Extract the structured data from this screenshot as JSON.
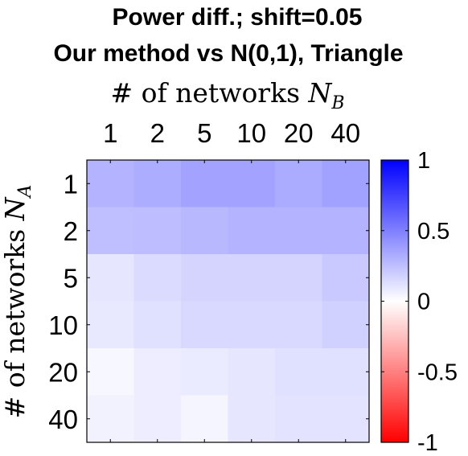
{
  "chart_data": {
    "type": "heatmap",
    "title_line1": "Power diff.; shift=0.05",
    "title_line2": "Our method vs N(0,1), Triangle",
    "xlabel_prefix": "# of networks ",
    "xlabel_var": "N",
    "xlabel_sub": "B",
    "ylabel_prefix": "# of networks ",
    "ylabel_var": "N",
    "ylabel_sub": "A",
    "x_categories": [
      "1",
      "2",
      "5",
      "10",
      "20",
      "40"
    ],
    "y_categories": [
      "1",
      "2",
      "5",
      "10",
      "20",
      "40"
    ],
    "values": [
      [
        0.3,
        0.32,
        0.36,
        0.36,
        0.33,
        0.37
      ],
      [
        0.25,
        0.26,
        0.28,
        0.3,
        0.3,
        0.3
      ],
      [
        0.1,
        0.14,
        0.17,
        0.17,
        0.17,
        0.21
      ],
      [
        0.09,
        0.12,
        0.15,
        0.15,
        0.15,
        0.18
      ],
      [
        0.03,
        0.07,
        0.08,
        0.1,
        0.12,
        0.12
      ],
      [
        0.05,
        0.07,
        0.04,
        0.1,
        0.11,
        0.11
      ]
    ],
    "colorbar": {
      "range": [
        -1,
        1
      ],
      "ticks": [
        1,
        0.5,
        0,
        -0.5,
        -1
      ],
      "tick_labels": [
        "1",
        "0.5",
        "0",
        "-0.5",
        "-1"
      ],
      "colors": {
        "negative": "#ff0000",
        "zero": "#ffffff",
        "positive": "#0000ff"
      }
    },
    "legend": "none",
    "grid": false
  }
}
